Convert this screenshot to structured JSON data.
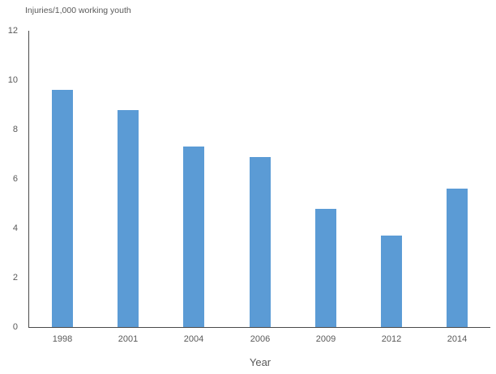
{
  "chart_data": {
    "type": "bar",
    "title": "Injuries/1,000 working youth",
    "xlabel": "Year",
    "ylabel": "",
    "categories": [
      "1998",
      "2001",
      "2004",
      "2006",
      "2009",
      "2012",
      "2014"
    ],
    "values": [
      9.6,
      8.8,
      7.3,
      6.9,
      4.8,
      3.7,
      5.6
    ],
    "ylim": [
      0,
      12
    ],
    "yticks": [
      0,
      2,
      4,
      6,
      8,
      10,
      12
    ],
    "grid": false,
    "legend": false,
    "bar_color": "#5B9BD5",
    "axis_color": "#4A4A4A",
    "text_color": "#595959"
  }
}
